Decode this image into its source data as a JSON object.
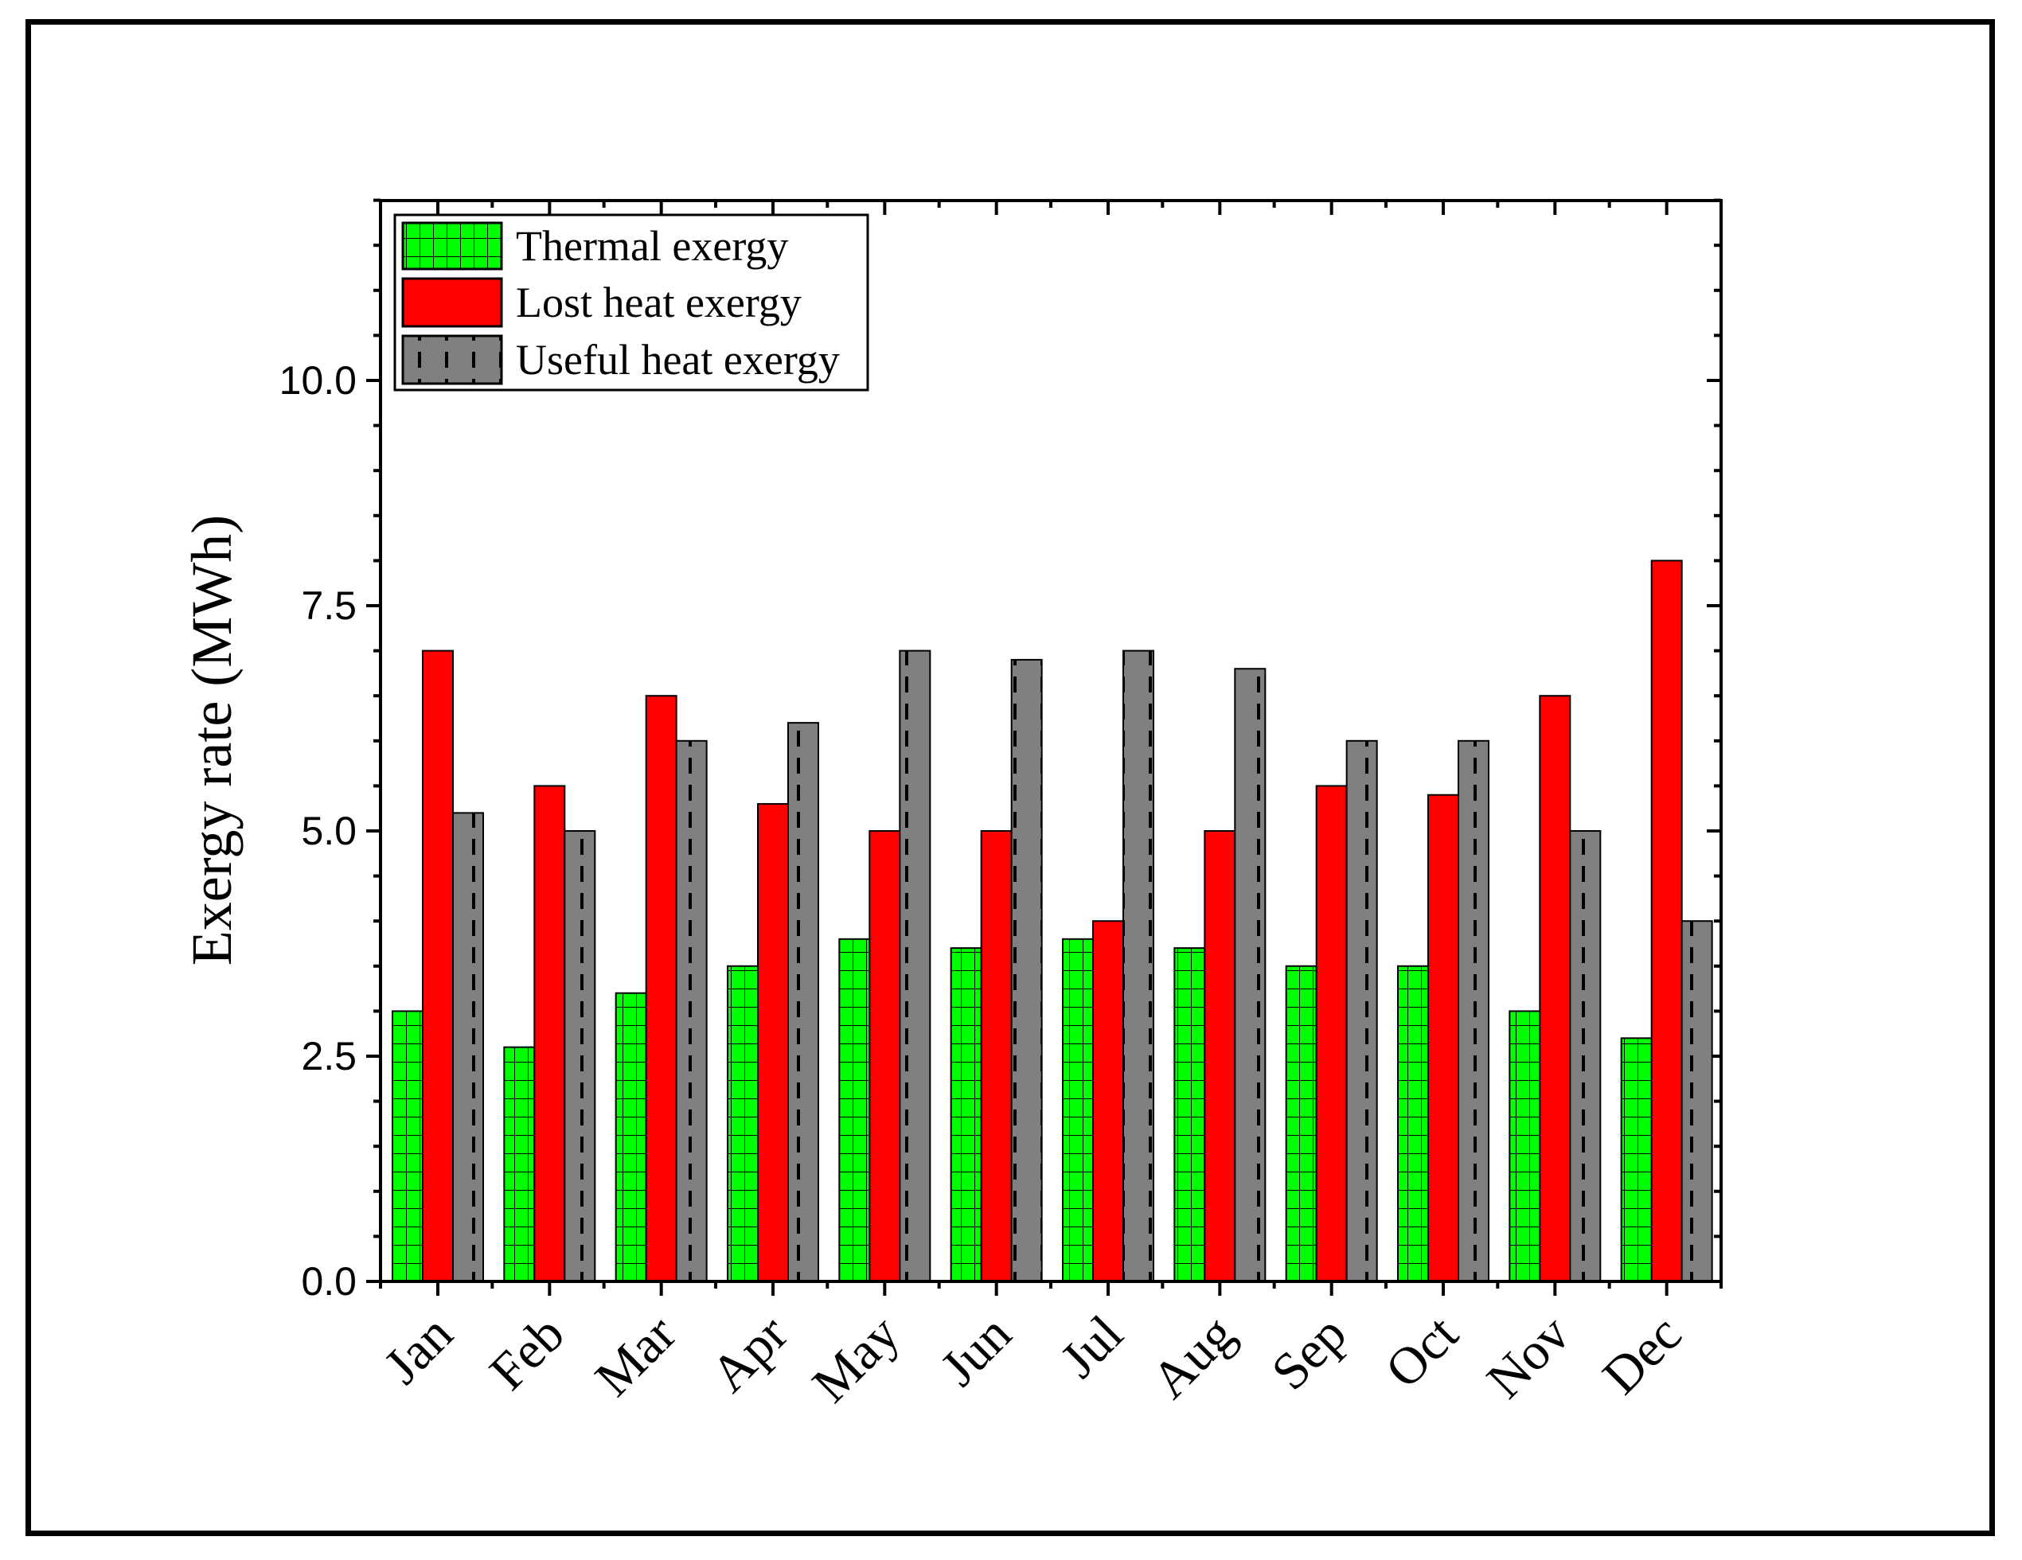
{
  "chart_data": {
    "type": "bar",
    "title": "",
    "xlabel": "",
    "ylabel": "Exergy rate (MWh)",
    "ylim": [
      0,
      12
    ],
    "yticks": [
      "0.0",
      "2.5",
      "5.0",
      "7.5",
      "10.0"
    ],
    "categories": [
      "Jan",
      "Feb",
      "Mar",
      "Apr",
      "May",
      "Jun",
      "Jul",
      "Aug",
      "Sep",
      "Oct",
      "Nov",
      "Dec"
    ],
    "series": [
      {
        "name": "Thermal exergy",
        "color": "#00ff00",
        "pattern": "grid",
        "values": [
          3.0,
          2.6,
          3.2,
          3.5,
          3.8,
          3.7,
          3.8,
          3.7,
          3.5,
          3.5,
          3.0,
          2.7
        ]
      },
      {
        "name": "Lost heat exergy",
        "color": "#ff0000",
        "pattern": "solid",
        "values": [
          7.0,
          5.5,
          6.5,
          5.3,
          5.0,
          5.0,
          4.0,
          5.0,
          5.5,
          5.4,
          6.5,
          8.0
        ]
      },
      {
        "name": "Useful heat exergy",
        "color": "#808080",
        "pattern": "dashed-lines",
        "values": [
          5.2,
          5.0,
          6.0,
          6.2,
          7.0,
          6.9,
          7.0,
          6.8,
          6.0,
          6.0,
          5.0,
          4.0
        ]
      }
    ],
    "legend_position": "top-left",
    "grid": false
  }
}
